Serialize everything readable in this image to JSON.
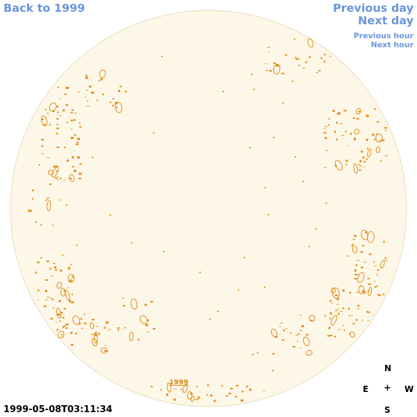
{
  "nav": {
    "back_label": "Back to 1999",
    "previous_day_label": "Previous day",
    "next_day_label": "Next day",
    "previous_hour_label": "Previous hour",
    "next_hour_label": "Next hour"
  },
  "disk": {
    "year_label": "1999",
    "disk_color": "#fdf7e8",
    "limb_color": "#e8dcc0",
    "contour_color": "#e08a10"
  },
  "timestamp": "1999-05-08T03:11:34",
  "compass": {
    "north": "N",
    "east": "E",
    "center": "+",
    "west": "W",
    "south": "S"
  }
}
